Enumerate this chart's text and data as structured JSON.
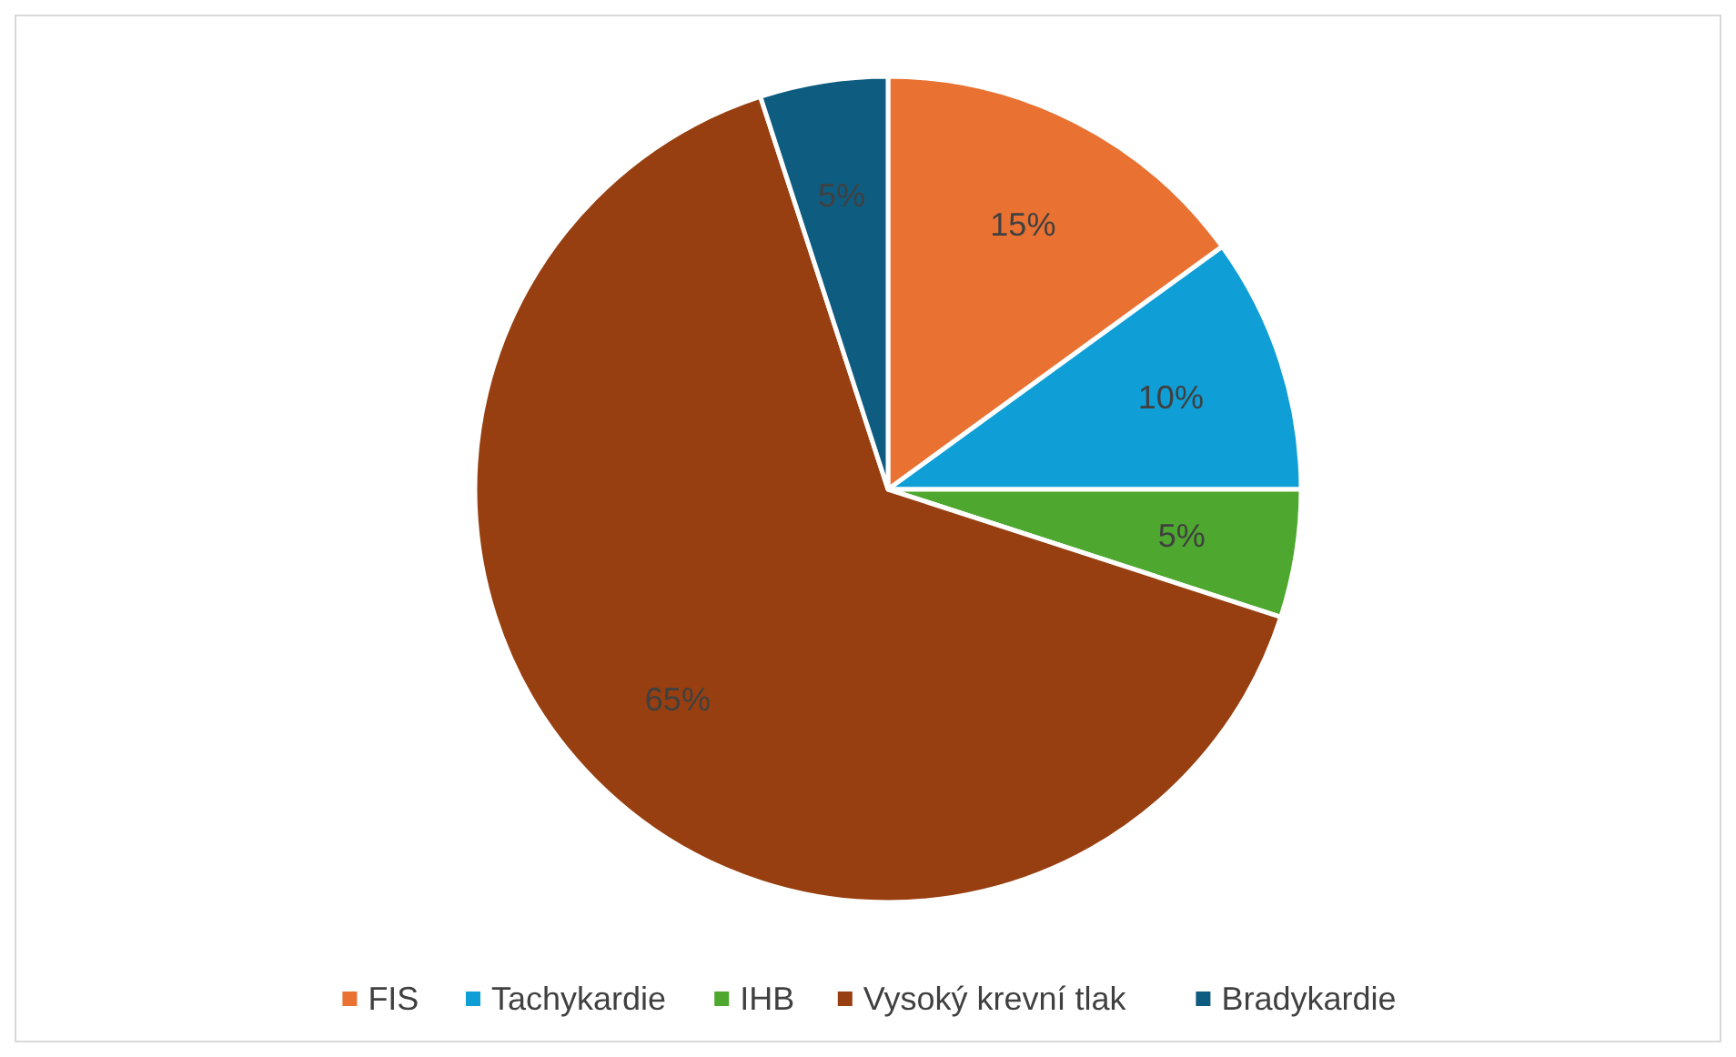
{
  "chart_data": {
    "type": "pie",
    "categories": [
      "FIS",
      "Tachykardie",
      "IHB",
      "Vysoký krevní tlak",
      "Bradykardie"
    ],
    "values": [
      15,
      10,
      5,
      65,
      5
    ],
    "colors": [
      "#e97132",
      "#0f9ed5",
      "#4ea72e",
      "#973f10",
      "#0e5c80"
    ],
    "value_labels": [
      "15%",
      "10%",
      "5%",
      "65%",
      "5%"
    ],
    "legend": "bottom"
  }
}
